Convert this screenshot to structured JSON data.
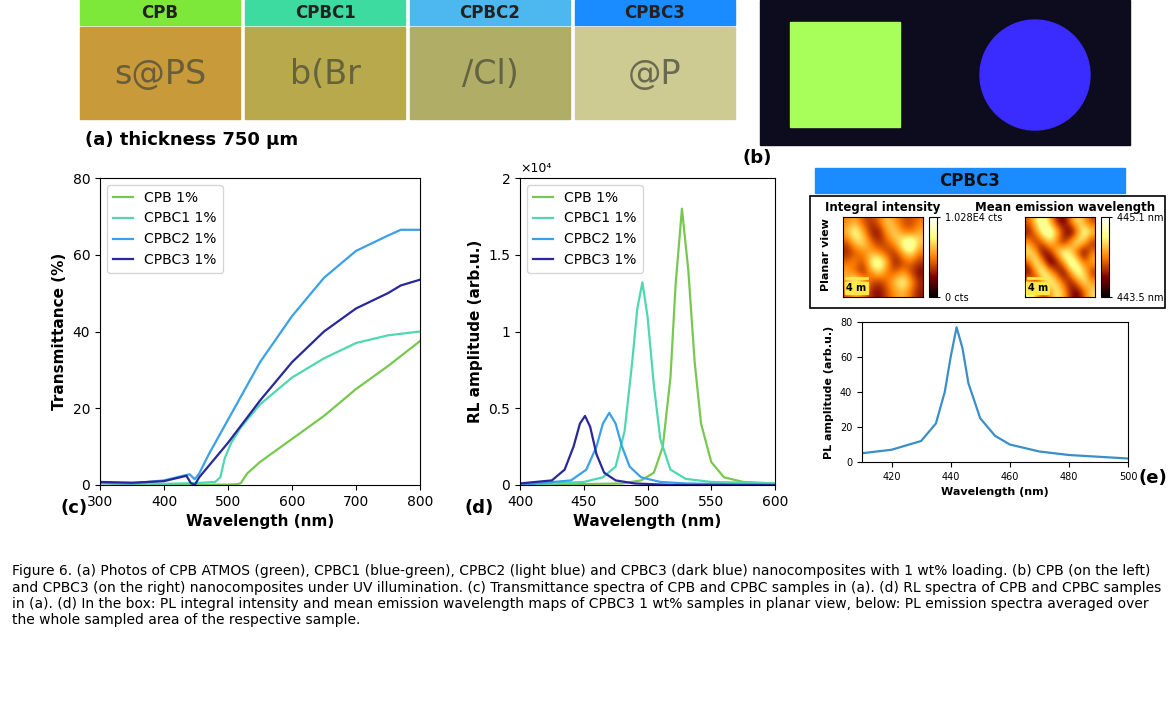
{
  "photos_panel": {
    "panel_label": "(a) thickness 750 µm",
    "samples": [
      {
        "label": "CPB",
        "color": "#7ee83a",
        "overlay_text": "s@PS"
      },
      {
        "label": "CPBC1",
        "color": "#3ddba0",
        "overlay_text": "b(Br"
      },
      {
        "label": "CPBC2",
        "color": "#4db8f0",
        "overlay_text": "/Cl)"
      },
      {
        "label": "CPBC3",
        "color": "#1a8cff",
        "overlay_text": "@P"
      }
    ]
  },
  "uv_panel": {
    "panel_label": "(b)"
  },
  "chart_data": [
    {
      "type": "line",
      "panel_label": "(c)",
      "x_label": "Wavelength (nm)",
      "y_label": "Transmittance (%)",
      "xlim": [
        300,
        800
      ],
      "xticks": [
        300,
        400,
        500,
        600,
        700,
        800
      ],
      "ylim": [
        0,
        80
      ],
      "yticks": [
        0,
        20,
        40,
        60,
        80
      ],
      "legend": "upper left",
      "series": [
        {
          "name": "CPB 1%",
          "color": "#78c850",
          "x": [
            300,
            350,
            400,
            450,
            500,
            515,
            520,
            530,
            550,
            600,
            650,
            700,
            750,
            800
          ],
          "values": [
            0.5,
            0.3,
            0.2,
            0.1,
            0.1,
            0.2,
            0.5,
            3,
            6,
            12,
            18,
            25,
            31,
            37.5
          ]
        },
        {
          "name": "CPBC1 1%",
          "color": "#4fd8b0",
          "x": [
            300,
            350,
            400,
            450,
            480,
            488,
            495,
            505,
            520,
            550,
            600,
            650,
            700,
            750,
            800
          ],
          "values": [
            0.5,
            0.4,
            0.3,
            0.5,
            0.8,
            2,
            7,
            11,
            15,
            21,
            28,
            33,
            37,
            39,
            40
          ]
        },
        {
          "name": "CPBC2 1%",
          "color": "#3aa0e8",
          "x": [
            300,
            350,
            400,
            420,
            440,
            448,
            455,
            470,
            500,
            550,
            600,
            650,
            700,
            750,
            770,
            800
          ],
          "values": [
            0.5,
            0.4,
            1.2,
            2,
            2.8,
            1.5,
            3,
            8,
            17,
            32,
            44,
            54,
            61,
            65,
            66.5,
            66.5
          ]
        },
        {
          "name": "CPBC3 1%",
          "color": "#28289a",
          "x": [
            300,
            350,
            400,
            420,
            435,
            442,
            448,
            455,
            470,
            500,
            550,
            600,
            650,
            700,
            750,
            770,
            800
          ],
          "values": [
            0.8,
            0.6,
            1,
            1.8,
            2.4,
            0.5,
            0,
            2,
            5,
            11,
            22,
            32,
            40,
            46,
            50,
            52,
            53.5
          ]
        }
      ]
    },
    {
      "type": "line",
      "panel_label": "(d)",
      "x_label": "Wavelength (nm)",
      "y_label": "RL amplitude (arb.u.)",
      "annotation": "×10⁴",
      "xlim": [
        400,
        600
      ],
      "xticks": [
        400,
        450,
        500,
        550,
        600
      ],
      "ylim": [
        0,
        2
      ],
      "yticks": [
        0,
        0.5,
        1,
        1.5,
        2
      ],
      "legend": "upper left",
      "series": [
        {
          "name": "CPB 1%",
          "color": "#78c850",
          "x": [
            400,
            480,
            495,
            505,
            512,
            518,
            522,
            527,
            532,
            537,
            542,
            550,
            560,
            575,
            600
          ],
          "values": [
            0,
            0.01,
            0.03,
            0.08,
            0.25,
            0.7,
            1.3,
            1.8,
            1.4,
            0.8,
            0.4,
            0.15,
            0.05,
            0.02,
            0.01
          ]
        },
        {
          "name": "CPBC1 1%",
          "color": "#4fd8b0",
          "x": [
            400,
            450,
            465,
            475,
            482,
            488,
            492,
            496,
            500,
            505,
            510,
            518,
            530,
            550,
            600
          ],
          "values": [
            0,
            0.02,
            0.05,
            0.12,
            0.35,
            0.8,
            1.15,
            1.32,
            1.1,
            0.65,
            0.3,
            0.1,
            0.04,
            0.02,
            0.01
          ]
        },
        {
          "name": "CPBC2 1%",
          "color": "#3aa0e8",
          "x": [
            400,
            440,
            452,
            460,
            465,
            470,
            475,
            480,
            486,
            495,
            510,
            530,
            600
          ],
          "values": [
            0,
            0.03,
            0.1,
            0.25,
            0.4,
            0.47,
            0.4,
            0.25,
            0.12,
            0.05,
            0.02,
            0.01,
            0
          ]
        },
        {
          "name": "CPBC3 1%",
          "color": "#28289a",
          "x": [
            400,
            425,
            435,
            442,
            447,
            451,
            455,
            460,
            466,
            475,
            490,
            520,
            600
          ],
          "values": [
            0.01,
            0.03,
            0.1,
            0.25,
            0.4,
            0.45,
            0.38,
            0.2,
            0.08,
            0.03,
            0.01,
            0,
            0
          ]
        }
      ]
    },
    {
      "type": "line",
      "panel_label": "(e)",
      "x_label": "Wavelength (nm)",
      "y_label": "PL amplitude (arb.u.)",
      "xlim": [
        410,
        500
      ],
      "xticks": [
        420,
        440,
        460,
        480,
        500
      ],
      "ylim": [
        0,
        80
      ],
      "yticks": [
        0,
        20,
        40,
        60,
        80
      ],
      "series": [
        {
          "color": "#3a8fc8",
          "x": [
            410,
            420,
            430,
            435,
            438,
            440,
            442,
            444,
            446,
            450,
            455,
            460,
            470,
            480,
            490,
            500
          ],
          "values": [
            5,
            7,
            12,
            22,
            40,
            60,
            77,
            65,
            45,
            25,
            15,
            10,
            6,
            4,
            3,
            2
          ]
        }
      ]
    }
  ],
  "maps_panel": {
    "header": "CPBC3",
    "row_label": "Planar view",
    "maps": [
      {
        "title": "Integral intensity",
        "scale_bar": "4 m",
        "colorbar": {
          "range": [
            0,
            10280
          ],
          "ticks": [
            {
              "value": 0,
              "label": "0 cts"
            },
            {
              "value": 10280,
              "label": "1.028E4 cts"
            }
          ]
        },
        "cells": [
          [
            5200,
            6100,
            4300,
            3500,
            4800,
            7000,
            5600,
            4200,
            3900,
            5000
          ],
          [
            6300,
            8800,
            6200,
            3100,
            2600,
            5900,
            7400,
            5100,
            4600,
            6200
          ],
          [
            4100,
            6900,
            7600,
            4800,
            3300,
            4400,
            6000,
            8600,
            9900,
            6800
          ],
          [
            3000,
            4200,
            5300,
            6100,
            5200,
            3800,
            3600,
            6500,
            8200,
            5100
          ],
          [
            4700,
            5600,
            3900,
            7800,
            9600,
            6400,
            2700,
            3900,
            4800,
            3600
          ],
          [
            6100,
            4400,
            2800,
            5600,
            7300,
            5000,
            4200,
            5700,
            3800,
            2500
          ],
          [
            5800,
            9400,
            7100,
            4200,
            3500,
            4800,
            6900,
            8500,
            6100,
            3400
          ],
          [
            4200,
            6000,
            5100,
            3300,
            2400,
            4100,
            5500,
            6300,
            4700,
            2900
          ]
        ]
      },
      {
        "title": "Mean emission wavelength",
        "scale_bar": "4 m",
        "colorbar": {
          "range": [
            443.5,
            445.1
          ],
          "ticks": [
            {
              "value": 443.5,
              "label": "443.5 nm"
            },
            {
              "value": 445.1,
              "label": "445.1 nm"
            }
          ]
        },
        "cells": [
          [
            444.2,
            444.6,
            444.9,
            444.5,
            444.0,
            443.8,
            444.3,
            444.7,
            444.4,
            444.1
          ],
          [
            443.9,
            444.3,
            444.8,
            445.0,
            444.6,
            444.1,
            443.7,
            444.2,
            444.9,
            444.6
          ],
          [
            444.4,
            444.0,
            444.2,
            444.6,
            444.3,
            443.9,
            444.4,
            444.8,
            444.5,
            444.0
          ],
          [
            444.7,
            444.5,
            443.8,
            444.0,
            444.5,
            444.9,
            444.6,
            444.1,
            443.8,
            444.3
          ],
          [
            444.2,
            444.8,
            444.4,
            443.7,
            443.9,
            444.4,
            445.0,
            444.7,
            444.2,
            444.5
          ],
          [
            443.8,
            444.3,
            444.9,
            444.5,
            444.1,
            443.8,
            444.4,
            444.9,
            444.6,
            444.0
          ],
          [
            444.5,
            444.0,
            444.4,
            444.8,
            444.6,
            444.2,
            443.9,
            444.3,
            444.7,
            444.4
          ],
          [
            444.9,
            444.6,
            444.1,
            444.3,
            444.7,
            444.5,
            444.0,
            443.8,
            444.2,
            444.6
          ]
        ]
      }
    ]
  },
  "caption": "Figure 6. (a) Photos of CPB ATMOS (green), CPBC1 (blue-green), CPBC2 (light blue) and CPBC3 (dark blue) nanocomposites with 1 wt% loading. (b) CPB (on the left) and CPBC3 (on the right) nanocomposites under UV illumination. (c) Transmittance spectra of CPB and CPBC samples in (a). (d) RL spectra of CPB and CPBC samples in (a). (d) In the box: PL integral intensity and mean emission wavelength maps of CPBC3 1 wt% samples in planar view, below: PL emission spectra averaged over the whole sampled area of the respective sample."
}
